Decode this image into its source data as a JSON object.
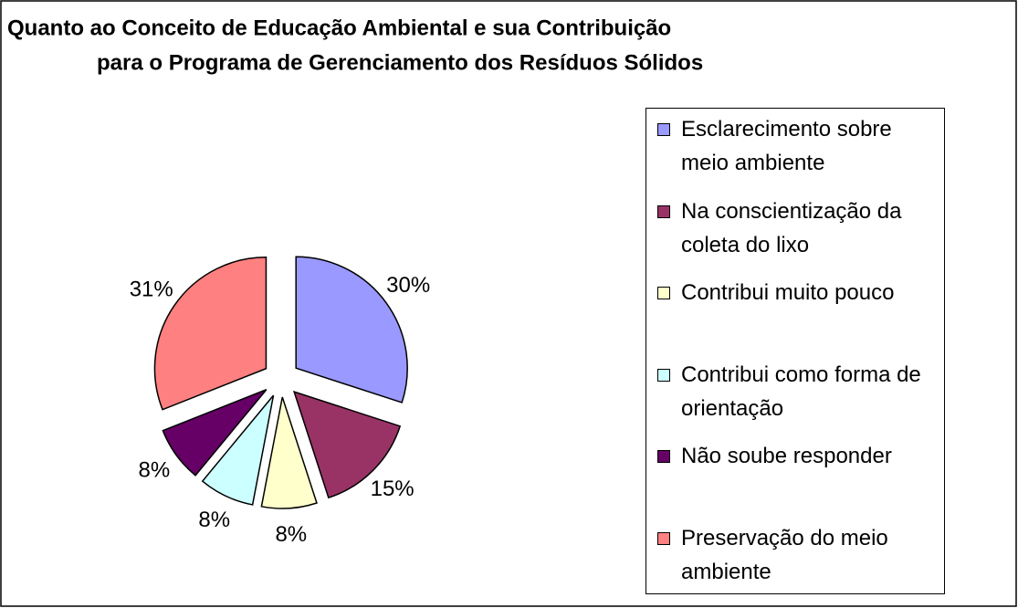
{
  "chart_data": {
    "type": "pie",
    "title": [
      "Quanto ao Conceito de Educação Ambiental e sua Contribuição",
      "para o Programa de Gerenciamento dos Resíduos Sólidos"
    ],
    "categories": [
      "Esclarecimento sobre meio ambiente",
      "Na conscientização da coleta do lixo",
      "Contribui muito pouco",
      "Contribui como forma de orientação",
      "Não soube responder",
      "Preservação do meio ambiente"
    ],
    "values": [
      30,
      15,
      8,
      8,
      8,
      31
    ],
    "value_labels": [
      "30%",
      "15%",
      "8%",
      "8%",
      "8%",
      "31%"
    ],
    "colors": [
      "#9999ff",
      "#993366",
      "#ffffcc",
      "#ccffff",
      "#660066",
      "#ff8080"
    ],
    "legend": "right"
  }
}
